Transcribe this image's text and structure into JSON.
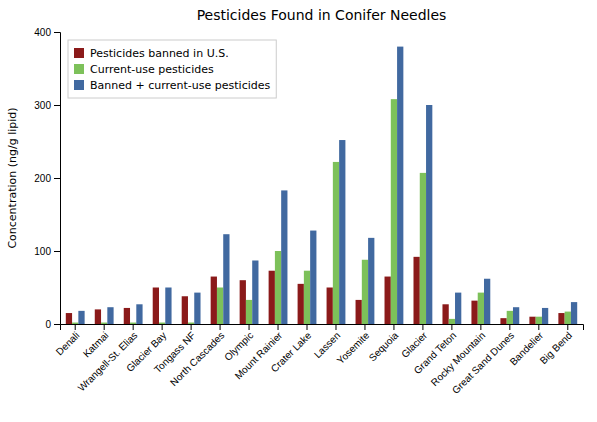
{
  "chart_data": {
    "type": "bar",
    "title": "Pesticides Found in Conifer Needles",
    "ylabel": "Concentration (ng/g lipid)",
    "categories": [
      "Denali",
      "Katmai",
      "Wrangell-St. Elias",
      "Glacier Bay",
      "Tongass NF",
      "North Cascades",
      "Olympic",
      "Mount Rainier",
      "Crater Lake",
      "Lassen",
      "Yosemite",
      "Sequoia",
      "Glacier",
      "Grand Teton",
      "Rocky Mountain",
      "Great Sand Dunes",
      "Bandelier",
      "Big Bend"
    ],
    "series": [
      {
        "name": "Pesticides banned in U.S.",
        "color": "#8B1A1A",
        "values": [
          15,
          20,
          22,
          50,
          38,
          65,
          60,
          73,
          55,
          50,
          33,
          65,
          92,
          27,
          32,
          8,
          10,
          15
        ]
      },
      {
        "name": "Current-use pesticides",
        "color": "#7DC15A",
        "values": [
          2,
          2,
          2,
          2,
          2,
          50,
          33,
          100,
          73,
          222,
          88,
          308,
          207,
          7,
          43,
          18,
          10,
          17
        ]
      },
      {
        "name": "Banned + current-use pesticides",
        "color": "#4169A0",
        "values": [
          18,
          23,
          27,
          50,
          43,
          123,
          87,
          183,
          128,
          252,
          118,
          380,
          300,
          43,
          62,
          23,
          22,
          30
        ]
      }
    ],
    "ylim": [
      0,
      400
    ],
    "yticks": [
      0,
      100,
      200,
      300,
      400
    ],
    "grid": false,
    "legend": "upper left"
  }
}
